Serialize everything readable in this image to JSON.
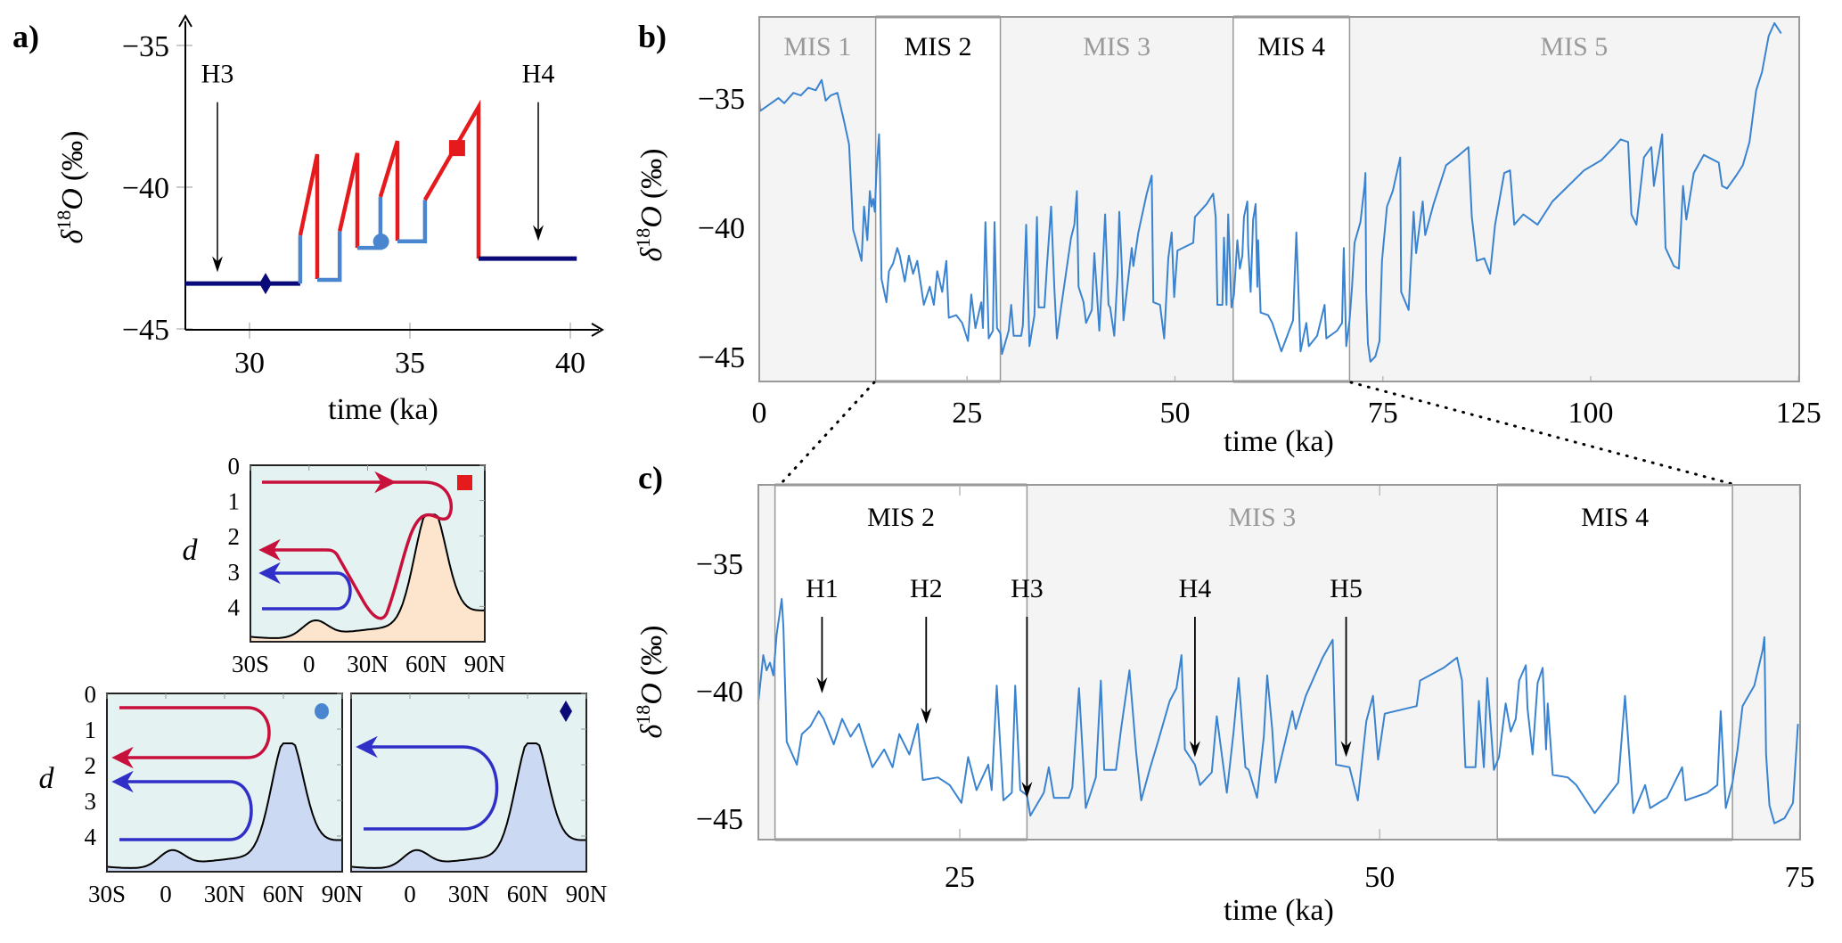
{
  "figure": {
    "panel_labels": {
      "a": "a)",
      "b": "b)",
      "c": "c)"
    },
    "colors": {
      "record_line": "#3a83d0",
      "warm_phase": "#e41a1c",
      "cold_phase": "#4a86cf",
      "stadial": "#0a0a78",
      "shade": "#f4f4f4",
      "frame": "#999999",
      "ocean": "#e4f2f1",
      "topo_fill_a": "#fde4cd",
      "topo_fill_b": "#ccd9f2",
      "cell_red": "#c8103c",
      "cell_blue": "#3030c8"
    }
  },
  "chart_data": [
    {
      "id": "a",
      "type": "line",
      "title": "",
      "xlabel": "time (ka)",
      "ylabel": "δ18O (‰)",
      "ylabel_parts": {
        "delta": "δ",
        "sup": "18",
        "O": "O",
        "unit": "(‰)"
      },
      "xlim": [
        28,
        40.9
      ],
      "ylim": [
        -45,
        -34
      ],
      "xticks": [
        30,
        35,
        40
      ],
      "yticks": [
        -35,
        -40,
        -45
      ],
      "xtick_labels": [
        "30",
        "35",
        "40"
      ],
      "ytick_labels": [
        "−35",
        "−40",
        "−45"
      ],
      "grid": false,
      "segments": [
        {
          "phase": "stadial",
          "points": [
            [
              28,
              -43.4
            ],
            [
              31.58,
              -43.4
            ]
          ]
        },
        {
          "phase": "cold",
          "points": [
            [
              31.58,
              -43.4
            ],
            [
              31.58,
              -41.7
            ]
          ]
        },
        {
          "phase": "warm",
          "points": [
            [
              31.58,
              -41.7
            ],
            [
              32.11,
              -38.84
            ],
            [
              32.11,
              -43.24
            ]
          ]
        },
        {
          "phase": "cold",
          "points": [
            [
              32.11,
              -43.27
            ],
            [
              32.81,
              -43.27
            ],
            [
              32.81,
              -41.55
            ]
          ]
        },
        {
          "phase": "warm",
          "points": [
            [
              32.81,
              -41.55
            ],
            [
              33.36,
              -38.8
            ],
            [
              33.36,
              -42.14
            ]
          ]
        },
        {
          "phase": "cold",
          "points": [
            [
              33.36,
              -42.14
            ],
            [
              34.08,
              -42.14
            ],
            [
              34.08,
              -40.34
            ]
          ]
        },
        {
          "phase": "warm",
          "points": [
            [
              34.08,
              -40.34
            ],
            [
              34.61,
              -38.37
            ],
            [
              34.61,
              -41.89
            ]
          ]
        },
        {
          "phase": "cold",
          "points": [
            [
              34.61,
              -41.91
            ],
            [
              35.47,
              -41.91
            ],
            [
              35.47,
              -40.45
            ]
          ]
        },
        {
          "phase": "warm",
          "points": [
            [
              35.47,
              -40.45
            ],
            [
              37.14,
              -37.17
            ],
            [
              37.14,
              -42.52
            ]
          ]
        },
        {
          "phase": "stadial",
          "points": [
            [
              37.14,
              -42.52
            ],
            [
              40.2,
              -42.52
            ]
          ]
        }
      ],
      "markers": [
        {
          "shape": "diamond",
          "phase": "stadial",
          "x": 30.5,
          "y": -43.4
        },
        {
          "shape": "circle",
          "phase": "cold",
          "x": 34.1,
          "y": -41.92
        },
        {
          "shape": "square",
          "phase": "warm",
          "x": 36.47,
          "y": -38.62
        }
      ],
      "annotations": [
        {
          "label": "H3",
          "x": 29.0,
          "y_top": -37.0,
          "y_tip": -43.0
        },
        {
          "label": "H4",
          "x": 39.0,
          "y_top": -37.0,
          "y_tip": -41.9
        }
      ]
    },
    {
      "id": "b",
      "type": "line",
      "xlabel": "time (ka)",
      "ylabel": "δ18O (‰)",
      "ylabel_parts": {
        "delta": "δ",
        "sup": "18",
        "O": "O",
        "unit": "(‰)"
      },
      "xlim": [
        0,
        125
      ],
      "ylim": [
        -46,
        -31.9
      ],
      "xticks": [
        0,
        25,
        50,
        75,
        100,
        125
      ],
      "yticks": [
        -35,
        -40,
        -45
      ],
      "xtick_labels": [
        "0",
        "25",
        "50",
        "75",
        "100",
        "125"
      ],
      "ytick_labels": [
        "−35",
        "−40",
        "−45"
      ],
      "grid": false,
      "stages": [
        {
          "label": "MIS 1",
          "start": 0,
          "end": 14,
          "shaded": true
        },
        {
          "label": "MIS 2",
          "start": 14,
          "end": 29,
          "shaded": false
        },
        {
          "label": "MIS 3",
          "start": 29,
          "end": 57,
          "shaded": true
        },
        {
          "label": "MIS 4",
          "start": 57,
          "end": 71,
          "shaded": false
        },
        {
          "label": "MIS 5",
          "start": 71,
          "end": 125,
          "shaded": true
        }
      ],
      "series": [
        {
          "name": "δ18O record",
          "ref": "record"
        }
      ],
      "zoom_range": [
        13,
        75
      ]
    },
    {
      "id": "c",
      "type": "line",
      "xlabel": "time (ka)",
      "ylabel": "δ18O (‰)",
      "ylabel_parts": {
        "delta": "δ",
        "sup": "18",
        "O": "O",
        "unit": "(‰)"
      },
      "xlim": [
        13,
        75
      ],
      "ylim": [
        -45.9,
        -31.9
      ],
      "xticks": [
        25,
        50,
        75
      ],
      "yticks": [
        -35,
        -40,
        -45
      ],
      "xtick_labels": [
        "25",
        "50",
        "75"
      ],
      "ytick_labels": [
        "−35",
        "−40",
        "−45"
      ],
      "grid": false,
      "stages": [
        {
          "label": "",
          "start": 13,
          "end": 14,
          "shaded": true
        },
        {
          "label": "MIS 2",
          "start": 14,
          "end": 29,
          "shaded": false
        },
        {
          "label": "MIS 3",
          "start": 29,
          "end": 57,
          "shaded": true
        },
        {
          "label": "MIS 4",
          "start": 57,
          "end": 71,
          "shaded": false
        },
        {
          "label": "",
          "start": 71,
          "end": 75,
          "shaded": true
        }
      ],
      "annotations": [
        {
          "label": "H1",
          "x": 16.8,
          "y_top": -37.1,
          "y_tip": -40.1
        },
        {
          "label": "H2",
          "x": 23.0,
          "y_top": -37.1,
          "y_tip": -41.3
        },
        {
          "label": "H3",
          "x": 29.0,
          "y_top": -37.1,
          "y_tip": -44.2
        },
        {
          "label": "H4",
          "x": 39.0,
          "y_top": -37.1,
          "y_tip": -42.6
        },
        {
          "label": "H5",
          "x": 48.0,
          "y_top": -37.1,
          "y_tip": -42.6
        }
      ],
      "series": [
        {
          "name": "δ18O record",
          "ref": "record"
        }
      ]
    }
  ],
  "record": {
    "x": [
      0,
      0.1,
      1,
      2.3,
      3,
      4.1,
      5,
      5.9,
      6.8,
      7.5,
      8,
      8.6,
      9.4,
      10.2,
      10.8,
      11.3,
      11.9,
      12.3,
      12.6,
      12.9,
      13.0,
      13.3,
      13.5,
      13.7,
      13.9,
      14.1,
      14.4,
      14.5,
      14.7,
      15.3,
      15.6,
      16.1,
      16.6,
      16.9,
      17.5,
      18.0,
      18.5,
      19.0,
      19.8,
      20.5,
      21.0,
      21.4,
      22.0,
      22.5,
      22.8,
      23.7,
      24.4,
      25.1,
      25.5,
      26.0,
      26.7,
      26.9,
      27.2,
      27.6,
      28.1,
      28.3,
      28.6,
      29.0,
      29.2,
      30.0,
      30.3,
      30.6,
      31.5,
      31.7,
      32.1,
      32.5,
      33.1,
      33.4,
      33.6,
      34.3,
      34.6,
      35.1,
      35.5,
      35.8,
      36.3,
      36.8,
      37.5,
      37.9,
      38.2,
      38.4,
      39.0,
      39.3,
      40.0,
      40.3,
      40.9,
      41.3,
      41.6,
      42.0,
      42.2,
      42.7,
      43.1,
      43.3,
      43.6,
      43.8,
      44.8,
      45.0,
      45.6,
      46.6,
      47.2,
      47.4,
      48.2,
      48.7,
      49.2,
      49.6,
      49.9,
      50.3,
      52.2,
      52.4,
      53.8,
      54.6,
      54.9,
      55.1,
      55.7,
      55.9,
      56.2,
      56.4,
      56.8,
      57.1,
      57.5,
      57.8,
      58.1,
      58.3,
      58.7,
      58.8,
      59.1,
      59.4,
      59.7,
      59.9,
      60.0,
      60.3,
      61.2,
      61.7,
      62.8,
      64.2,
      64.6,
      65.1,
      65.8,
      66.1,
      67.1,
      68.0,
      68.2,
      69.5,
      70.1,
      70.3,
      70.6,
      71.0,
      71.3,
      71.6,
      72.3,
      72.8,
      72.9,
      73.0,
      73.2,
      73.5,
      74.1,
      74.6,
      74.9,
      75.5,
      76.2,
      77.1,
      77.2,
      78.1,
      78.7,
      79.0,
      79.8,
      80.1,
      81.1,
      82.6,
      84.2,
      85.3,
      85.7,
      86.3,
      87.2,
      87.9,
      88.5,
      89.6,
      90.3,
      90.8,
      91.9,
      93.6,
      95.4,
      97.3,
      99.2,
      101.3,
      102.8,
      103.6,
      104.5,
      104.9,
      105.5,
      106.4,
      107.3,
      107.6,
      108.6,
      109.0,
      110.0,
      110.6,
      111.1,
      111.5,
      112.4,
      113.6,
      115.4,
      115.8,
      116.4,
      117.5,
      118.3,
      119.1,
      119.9,
      120.6,
      121.4,
      122.1,
      122.9
    ],
    "y": [
      -35.0,
      -35.5,
      -35.3,
      -35.0,
      -35.2,
      -34.8,
      -34.9,
      -34.6,
      -34.7,
      -34.3,
      -35.1,
      -34.9,
      -34.8,
      -35.9,
      -36.8,
      -40.1,
      -40.8,
      -41.3,
      -39.2,
      -40.2,
      -40.5,
      -38.6,
      -39.2,
      -38.9,
      -39.4,
      -37.8,
      -36.4,
      -37.5,
      -42.0,
      -42.9,
      -41.7,
      -41.4,
      -40.8,
      -41.1,
      -42.1,
      -41.1,
      -41.8,
      -41.3,
      -43.0,
      -42.3,
      -43.0,
      -41.7,
      -42.5,
      -41.3,
      -43.5,
      -43.4,
      -43.7,
      -44.4,
      -42.6,
      -43.9,
      -42.9,
      -43.9,
      -39.8,
      -44.3,
      -44.0,
      -39.8,
      -43.9,
      -44.1,
      -44.9,
      -44.0,
      -43.0,
      -44.2,
      -44.2,
      -43.8,
      -39.9,
      -44.6,
      -43.4,
      -39.6,
      -43.1,
      -43.1,
      -41.5,
      -39.2,
      -42.4,
      -44.3,
      -43.1,
      -42.0,
      -40.4,
      -39.9,
      -38.6,
      -42.3,
      -42.9,
      -43.7,
      -43.2,
      -41.0,
      -44.0,
      -41.6,
      -39.5,
      -43.0,
      -43.1,
      -44.2,
      -41.8,
      -39.4,
      -41.5,
      -43.6,
      -40.8,
      -41.5,
      -40.2,
      -38.7,
      -38.0,
      -42.9,
      -43.0,
      -44.3,
      -41.2,
      -40.2,
      -42.7,
      -40.9,
      -40.6,
      -39.6,
      -39.1,
      -38.7,
      -39.6,
      -43.0,
      -43.0,
      -40.4,
      -43.0,
      -39.5,
      -43.1,
      -42.6,
      -40.5,
      -41.6,
      -41.1,
      -39.6,
      -39.0,
      -40.7,
      -42.5,
      -39.7,
      -39.1,
      -42.3,
      -40.5,
      -43.3,
      -43.4,
      -43.7,
      -44.8,
      -43.6,
      -40.2,
      -44.8,
      -43.7,
      -44.6,
      -44.2,
      -43.0,
      -44.3,
      -44.0,
      -43.7,
      -40.8,
      -44.6,
      -43.6,
      -42.3,
      -40.6,
      -39.8,
      -38.4,
      -37.9,
      -42.5,
      -44.5,
      -45.2,
      -45.0,
      -44.4,
      -41.3,
      -39.2,
      -38.6,
      -37.3,
      -42.5,
      -43.2,
      -39.4,
      -41.0,
      -39.0,
      -40.3,
      -39.1,
      -37.6,
      -37.2,
      -36.9,
      -39.6,
      -41.3,
      -41.2,
      -41.8,
      -39.9,
      -37.9,
      -37.8,
      -39.9,
      -39.5,
      -39.9,
      -39.0,
      -38.4,
      -37.8,
      -37.4,
      -36.9,
      -36.6,
      -36.7,
      -39.5,
      -39.9,
      -37.3,
      -36.9,
      -38.4,
      -36.4,
      -40.8,
      -41.5,
      -41.6,
      -38.4,
      -39.7,
      -37.9,
      -37.2,
      -37.5,
      -38.4,
      -38.5,
      -38.0,
      -37.6,
      -36.7,
      -34.7,
      -34.0,
      -32.6,
      -32.1,
      -32.5
    ]
  },
  "mini_panels": {
    "ylabel": "d",
    "yticks": [
      "0",
      "1",
      "2",
      "3",
      "4"
    ],
    "xticks_full": [
      "30S",
      "0",
      "30N",
      "60N",
      "90N"
    ],
    "xticks_partial": [
      "0",
      "30N",
      "60N",
      "90N"
    ],
    "panels": [
      {
        "id": "warm",
        "marker": "square",
        "cells": [
          {
            "color": "red",
            "path": "warm-upper",
            "depth_in": 2.5,
            "depth_out": 0.5
          },
          {
            "color": "blue",
            "path": "lower",
            "depth_in": 3.2,
            "depth_out": 4.1
          }
        ]
      },
      {
        "id": "cold",
        "marker": "circle",
        "cells": [
          {
            "color": "red",
            "depth_out": 0.4,
            "depth_in": 1.8
          },
          {
            "color": "blue",
            "depth_out": 2.5,
            "depth_in": 4.1
          }
        ]
      },
      {
        "id": "stadial",
        "marker": "diamond",
        "cells": [
          {
            "color": "blue",
            "depth_out": 1.5,
            "depth_in": 3.8
          }
        ]
      }
    ]
  }
}
